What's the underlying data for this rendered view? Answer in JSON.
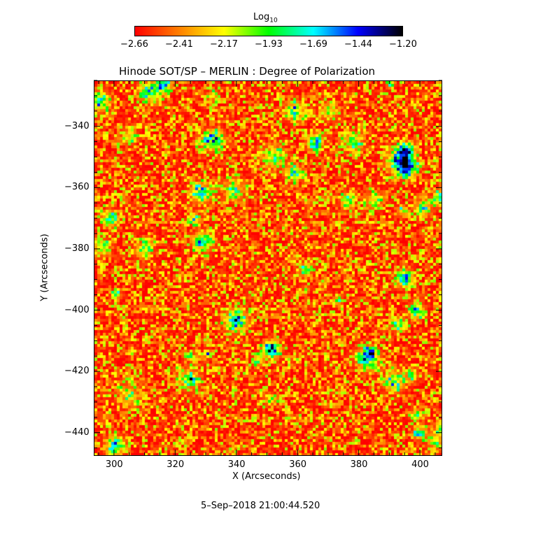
{
  "chart_data": {
    "type": "heatmap",
    "title": "Hinode SOT/SP – MERLIN : Degree of Polarization",
    "xlabel": "X (Arcseconds)",
    "ylabel": "Y (Arcseconds)",
    "xlim": [
      293.4,
      407.3
    ],
    "ylim": [
      -447.6,
      -325
    ],
    "xticks": [
      300,
      320,
      340,
      360,
      380,
      400
    ],
    "xtick_labels": [
      "300",
      "320",
      "340",
      "360",
      "380",
      "400"
    ],
    "yticks": [
      -340,
      -360,
      -380,
      -400,
      -420,
      -440
    ],
    "ytick_labels": [
      "−340",
      "−360",
      "−380",
      "−400",
      "−420",
      "−440"
    ],
    "colorbar": {
      "title": "Log",
      "title_subscript": "10",
      "range": [
        -2.66,
        -1.2
      ],
      "tick_labels": [
        "−2.66",
        "−2.41",
        "−2.17",
        "−1.93",
        "−1.69",
        "−1.44",
        "−1.20"
      ],
      "colormap": [
        "#ff0000",
        "#ff8000",
        "#ffff00",
        "#00ff00",
        "#00ffff",
        "#0000ff",
        "#000000"
      ]
    },
    "footer": "5–Sep–2018 21:00:44.520"
  }
}
